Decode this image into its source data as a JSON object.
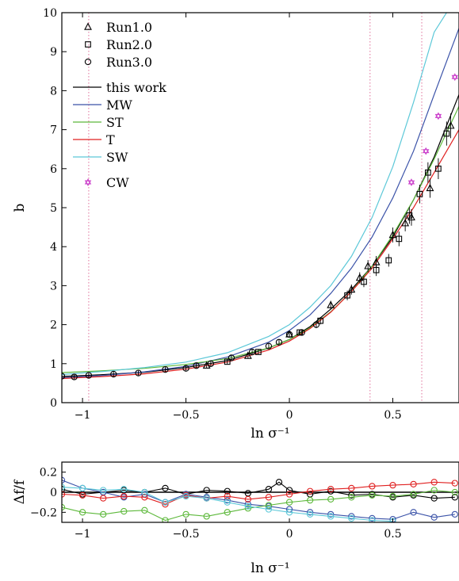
{
  "chart_data": [
    {
      "type": "scatter",
      "title": "",
      "xlabel": "ln σ⁻¹",
      "ylabel": "b",
      "xlim": [
        -1.1,
        0.82
      ],
      "ylim": [
        0,
        10
      ],
      "xticks": [
        -1,
        -0.5,
        0,
        0.5
      ],
      "xtick_labels": [
        "−1",
        "−0.5",
        "0",
        "0.5"
      ],
      "yticks": [
        0,
        1,
        2,
        3,
        4,
        5,
        6,
        7,
        8,
        9,
        10
      ],
      "ytick_labels": [
        "0",
        "1",
        "2",
        "3",
        "4",
        "5",
        "6",
        "7",
        "8",
        "9",
        "10"
      ],
      "grid": false,
      "legend_position": "top-left",
      "vlines": [
        -0.97,
        0.39,
        0.64
      ],
      "markers": [
        {
          "name": "Run1.0",
          "symbol": "triangle",
          "color": "#000000",
          "x": [
            -0.4,
            -0.2,
            0.0,
            0.2,
            0.3,
            0.34,
            0.38,
            0.42,
            0.5,
            0.56,
            0.59,
            0.68,
            0.78
          ],
          "y": [
            0.95,
            1.2,
            1.75,
            2.5,
            2.9,
            3.2,
            3.5,
            3.6,
            4.3,
            4.6,
            4.75,
            5.5,
            7.1
          ]
        },
        {
          "name": "Run2.0",
          "symbol": "square",
          "color": "#000000",
          "x": [
            -0.3,
            -0.15,
            0.05,
            0.15,
            0.28,
            0.36,
            0.42,
            0.48,
            0.53,
            0.58,
            0.63,
            0.67,
            0.72,
            0.76
          ],
          "y": [
            1.05,
            1.3,
            1.8,
            2.1,
            2.75,
            3.1,
            3.4,
            3.65,
            4.2,
            4.8,
            5.35,
            5.9,
            6.0,
            6.9
          ]
        },
        {
          "name": "Run3.0",
          "symbol": "circle",
          "color": "#000000",
          "x": [
            -1.1,
            -1.04,
            -0.97,
            -0.85,
            -0.73,
            -0.6,
            -0.5,
            -0.45,
            -0.38,
            -0.28,
            -0.18,
            -0.1,
            -0.05,
            0.0,
            0.06,
            0.13
          ],
          "y": [
            0.68,
            0.66,
            0.7,
            0.73,
            0.76,
            0.85,
            0.88,
            0.95,
            1.0,
            1.15,
            1.3,
            1.45,
            1.55,
            1.75,
            1.8,
            2.0
          ]
        },
        {
          "name": "CW",
          "symbol": "star",
          "color": "#cc44cc",
          "x": [
            0.59,
            0.66,
            0.72,
            0.8
          ],
          "y": [
            5.65,
            6.45,
            7.35,
            8.35
          ]
        }
      ],
      "series": [
        {
          "name": "this work",
          "color": "#000000",
          "x": [
            -1.1,
            -0.9,
            -0.7,
            -0.5,
            -0.3,
            -0.1,
            0.0,
            0.1,
            0.2,
            0.3,
            0.4,
            0.5,
            0.6,
            0.7,
            0.82
          ],
          "y": [
            0.67,
            0.72,
            0.78,
            0.9,
            1.08,
            1.4,
            1.62,
            1.95,
            2.4,
            2.9,
            3.5,
            4.25,
            5.2,
            6.3,
            7.9
          ]
        },
        {
          "name": "MW",
          "color": "#3a52a8",
          "x": [
            -1.1,
            -0.9,
            -0.7,
            -0.5,
            -0.3,
            -0.1,
            0.0,
            0.1,
            0.2,
            0.3,
            0.4,
            0.5,
            0.6,
            0.7,
            0.82
          ],
          "y": [
            0.64,
            0.7,
            0.79,
            0.93,
            1.17,
            1.55,
            1.85,
            2.25,
            2.8,
            3.45,
            4.25,
            5.25,
            6.45,
            7.9,
            9.6
          ]
        },
        {
          "name": "ST",
          "color": "#5cb83a",
          "x": [
            -1.1,
            -0.9,
            -0.7,
            -0.5,
            -0.3,
            -0.1,
            0.0,
            0.1,
            0.2,
            0.3,
            0.4,
            0.5,
            0.6,
            0.7,
            0.82
          ],
          "y": [
            0.77,
            0.82,
            0.88,
            0.98,
            1.13,
            1.4,
            1.62,
            1.92,
            2.33,
            2.85,
            3.5,
            4.3,
            5.2,
            6.25,
            7.6
          ]
        },
        {
          "name": "T",
          "color": "#e02020",
          "x": [
            -1.1,
            -0.9,
            -0.7,
            -0.5,
            -0.3,
            -0.1,
            0.0,
            0.1,
            0.2,
            0.3,
            0.4,
            0.5,
            0.6,
            0.7,
            0.82
          ],
          "y": [
            0.62,
            0.67,
            0.74,
            0.86,
            1.04,
            1.35,
            1.58,
            1.9,
            2.32,
            2.85,
            3.45,
            4.2,
            5.0,
            5.9,
            7.0
          ]
        },
        {
          "name": "SW",
          "color": "#5cc8d8",
          "x": [
            -1.1,
            -0.9,
            -0.7,
            -0.5,
            -0.3,
            -0.1,
            0.0,
            0.1,
            0.2,
            0.3,
            0.4,
            0.5,
            0.6,
            0.7,
            0.76
          ],
          "y": [
            0.72,
            0.8,
            0.9,
            1.04,
            1.28,
            1.7,
            2.0,
            2.45,
            3.0,
            3.75,
            4.75,
            6.05,
            7.7,
            9.5,
            10.0
          ]
        }
      ],
      "legend": [
        {
          "label": "Run1.0",
          "kind": "marker",
          "symbol": "triangle",
          "color": "#000000"
        },
        {
          "label": "Run2.0",
          "kind": "marker",
          "symbol": "square",
          "color": "#000000"
        },
        {
          "label": "Run3.0",
          "kind": "marker",
          "symbol": "circle",
          "color": "#000000"
        },
        {
          "label": "this work",
          "kind": "line",
          "color": "#000000"
        },
        {
          "label": "MW",
          "kind": "line",
          "color": "#3a52a8"
        },
        {
          "label": "ST",
          "kind": "line",
          "color": "#5cb83a"
        },
        {
          "label": "T",
          "kind": "line",
          "color": "#e02020"
        },
        {
          "label": "SW",
          "kind": "line",
          "color": "#5cc8d8"
        },
        {
          "label": "CW",
          "kind": "marker",
          "symbol": "star",
          "color": "#cc44cc"
        }
      ]
    },
    {
      "type": "line",
      "title": "",
      "xlabel": "ln σ⁻¹",
      "ylabel": "Δf/f",
      "xlim": [
        -1.1,
        0.82
      ],
      "ylim": [
        -0.3,
        0.3
      ],
      "xticks": [
        -1,
        -0.5,
        0,
        0.5
      ],
      "xtick_labels": [
        "−1",
        "−0.5",
        "0",
        "0.5"
      ],
      "yticks": [
        -0.2,
        0,
        0.2
      ],
      "ytick_labels": [
        "−0.2",
        "0",
        "0.2"
      ],
      "grid": false,
      "reference_line": 0,
      "series": [
        {
          "name": "this work",
          "color": "#000000",
          "symbol": "circle",
          "x": [
            -1.1,
            -1.0,
            -0.9,
            -0.8,
            -0.7,
            -0.6,
            -0.5,
            -0.4,
            -0.3,
            -0.2,
            -0.1,
            -0.05,
            0.0,
            0.1,
            0.2,
            0.3,
            0.4,
            0.5,
            0.6,
            0.7,
            0.8
          ],
          "y": [
            0.03,
            -0.02,
            0.0,
            0.02,
            0.0,
            0.04,
            -0.02,
            0.02,
            0.01,
            -0.01,
            0.03,
            0.1,
            0.02,
            -0.02,
            0.01,
            -0.03,
            -0.02,
            -0.05,
            -0.03,
            -0.06,
            -0.05
          ]
        },
        {
          "name": "MW",
          "color": "#3a52a8",
          "symbol": "circle",
          "x": [
            -1.1,
            -1.0,
            -0.9,
            -0.8,
            -0.7,
            -0.6,
            -0.5,
            -0.4,
            -0.3,
            -0.2,
            -0.1,
            0.0,
            0.1,
            0.2,
            0.3,
            0.4,
            0.5,
            0.6,
            0.7,
            0.8
          ],
          "y": [
            0.12,
            0.04,
            0.0,
            -0.05,
            -0.02,
            -0.1,
            -0.02,
            -0.05,
            -0.08,
            -0.12,
            -0.14,
            -0.17,
            -0.2,
            -0.22,
            -0.24,
            -0.26,
            -0.27,
            -0.2,
            -0.25,
            -0.22
          ]
        },
        {
          "name": "ST",
          "color": "#5cb83a",
          "symbol": "circle",
          "x": [
            -1.1,
            -1.0,
            -0.9,
            -0.8,
            -0.7,
            -0.6,
            -0.5,
            -0.4,
            -0.3,
            -0.2,
            -0.1,
            0.0,
            0.1,
            0.2,
            0.3,
            0.4,
            0.5,
            0.6,
            0.7,
            0.8
          ],
          "y": [
            -0.15,
            -0.2,
            -0.22,
            -0.19,
            -0.18,
            -0.28,
            -0.22,
            -0.24,
            -0.2,
            -0.16,
            -0.13,
            -0.1,
            -0.08,
            -0.07,
            -0.05,
            -0.03,
            -0.04,
            -0.02,
            0.02,
            0.0
          ]
        },
        {
          "name": "T",
          "color": "#e02020",
          "symbol": "circle",
          "x": [
            -1.1,
            -1.0,
            -0.9,
            -0.8,
            -0.7,
            -0.6,
            -0.5,
            -0.4,
            -0.3,
            -0.2,
            -0.1,
            0.0,
            0.1,
            0.2,
            0.3,
            0.4,
            0.5,
            0.6,
            0.7,
            0.8
          ],
          "y": [
            -0.02,
            -0.03,
            -0.06,
            -0.04,
            -0.05,
            -0.12,
            -0.03,
            -0.06,
            -0.04,
            -0.07,
            -0.05,
            -0.02,
            0.01,
            0.03,
            0.04,
            0.06,
            0.07,
            0.08,
            0.1,
            0.09
          ]
        },
        {
          "name": "SW",
          "color": "#5cc8d8",
          "symbol": "circle",
          "x": [
            -1.1,
            -1.0,
            -0.9,
            -0.8,
            -0.7,
            -0.6,
            -0.5,
            -0.4,
            -0.3,
            -0.2,
            -0.1,
            0.0,
            0.1,
            0.2,
            0.3,
            0.4,
            0.5
          ],
          "y": [
            0.05,
            0.04,
            0.02,
            0.03,
            0.0,
            -0.1,
            -0.04,
            -0.06,
            -0.1,
            -0.14,
            -0.17,
            -0.2,
            -0.22,
            -0.24,
            -0.26,
            -0.28,
            -0.29
          ]
        }
      ]
    }
  ]
}
